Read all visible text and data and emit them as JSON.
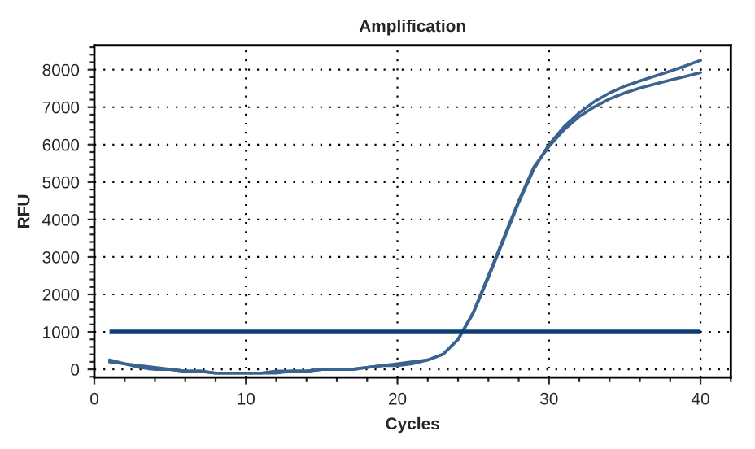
{
  "chart_data": {
    "type": "line",
    "title": "Amplification",
    "xlabel": "Cycles",
    "ylabel": "RFU",
    "x": [
      1,
      2,
      3,
      4,
      5,
      6,
      7,
      8,
      9,
      10,
      11,
      12,
      13,
      14,
      15,
      16,
      17,
      18,
      19,
      20,
      21,
      22,
      23,
      24,
      25,
      26,
      27,
      28,
      29,
      30,
      31,
      32,
      33,
      34,
      35,
      36,
      37,
      38,
      39,
      40
    ],
    "series": [
      {
        "color": "#3a6390",
        "values": [
          250,
          150,
          100,
          50,
          0,
          -50,
          -50,
          -100,
          -100,
          -100,
          -100,
          -50,
          -50,
          -50,
          0,
          0,
          0,
          50,
          100,
          150,
          200,
          250,
          400,
          800,
          1500,
          2450,
          3450,
          4450,
          5350,
          6000,
          6480,
          6850,
          7150,
          7380,
          7560,
          7700,
          7830,
          7960,
          8100,
          8250
        ]
      },
      {
        "color": "#3a6390",
        "values": [
          200,
          150,
          50,
          0,
          0,
          -50,
          -50,
          -100,
          -100,
          -100,
          -100,
          -100,
          -50,
          -50,
          0,
          0,
          0,
          50,
          100,
          100,
          150,
          250,
          400,
          800,
          1520,
          2500,
          3500,
          4500,
          5400,
          5950,
          6400,
          6750,
          7010,
          7220,
          7380,
          7510,
          7620,
          7720,
          7820,
          7920
        ]
      }
    ],
    "ref_lines": [
      {
        "axis": "y",
        "value": 1000,
        "color": "#0b3f74"
      }
    ],
    "xlim": [
      0,
      42
    ],
    "ylim": [
      -220,
      8650
    ],
    "xticks": [
      0,
      10,
      20,
      30,
      40
    ],
    "yticks": [
      0,
      1000,
      2000,
      3000,
      4000,
      5000,
      6000,
      7000,
      8000
    ],
    "grid": true,
    "marker": "none",
    "line_style": "solid"
  }
}
